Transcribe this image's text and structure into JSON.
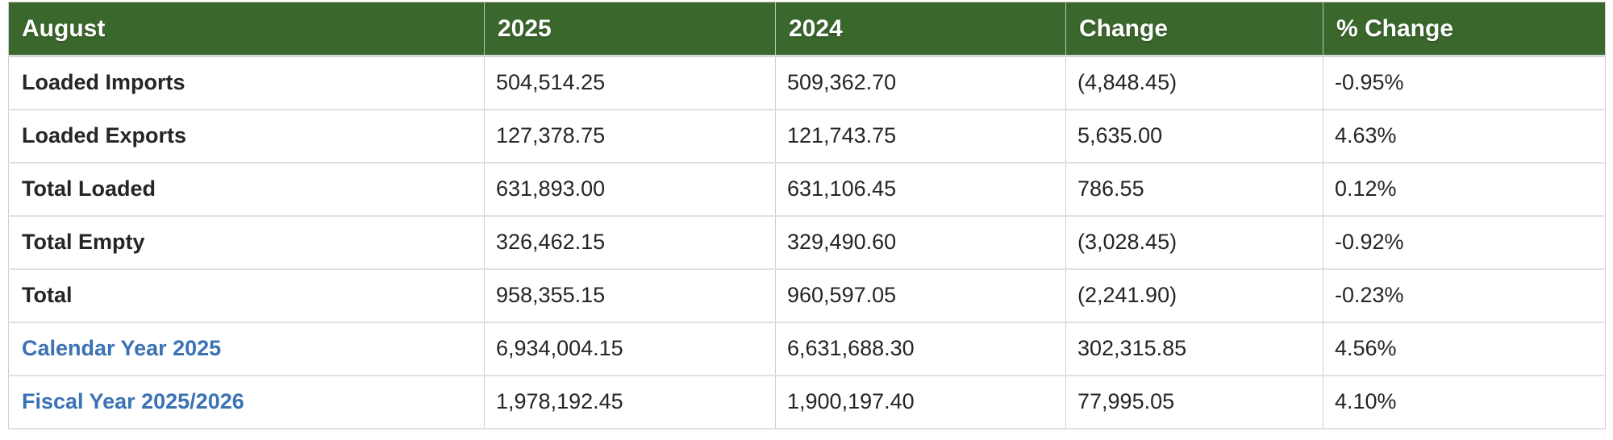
{
  "table": {
    "title_column": "August",
    "columns": [
      "August",
      "2025",
      "2024",
      "Change",
      "% Change"
    ],
    "rows": [
      {
        "label": "Loaded Imports",
        "is_link": false,
        "values": [
          "504,514.25",
          "509,362.70",
          "(4,848.45)",
          "-0.95%"
        ]
      },
      {
        "label": "Loaded Exports",
        "is_link": false,
        "values": [
          "127,378.75",
          "121,743.75",
          "5,635.00",
          "4.63%"
        ]
      },
      {
        "label": "Total Loaded",
        "is_link": false,
        "values": [
          "631,893.00",
          "631,106.45",
          "786.55",
          "0.12%"
        ]
      },
      {
        "label": "Total Empty",
        "is_link": false,
        "values": [
          "326,462.15",
          "329,490.60",
          "(3,028.45)",
          "-0.92%"
        ]
      },
      {
        "label": "Total",
        "is_link": false,
        "values": [
          "958,355.15",
          "960,597.05",
          "(2,241.90)",
          "-0.23%"
        ]
      },
      {
        "label": "Calendar Year 2025",
        "is_link": true,
        "values": [
          "6,934,004.15",
          "6,631,688.30",
          "302,315.85",
          "4.56%"
        ]
      },
      {
        "label": "Fiscal Year 2025/2026",
        "is_link": true,
        "values": [
          "1,978,192.45",
          "1,900,197.40",
          "77,995.05",
          "4.10%"
        ]
      }
    ],
    "colors": {
      "header_bg": "#3A672B",
      "header_text": "#FFFFFF",
      "link": "#3B72B4",
      "body_text": "#252525",
      "cell_border": "#CFCFCF",
      "row_border": "#E0E0E0"
    }
  }
}
